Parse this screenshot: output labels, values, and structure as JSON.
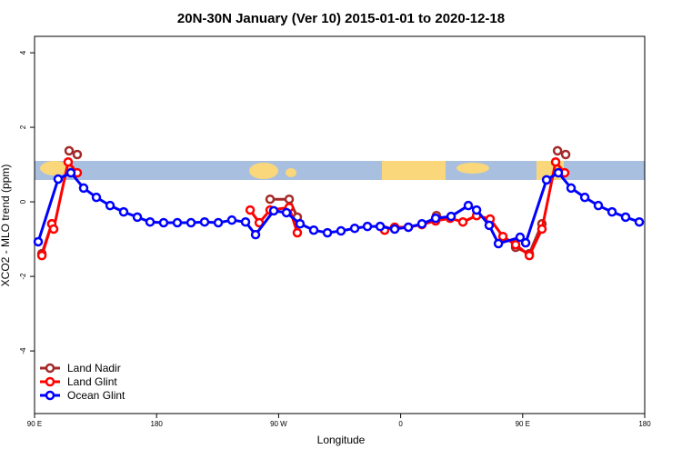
{
  "chart_data": {
    "type": "line",
    "title": "20N-30N January (Ver 10)   2015-01-01 to 2020-12-18",
    "x_label": "Longitude",
    "y_label": "XCO2 - MLO trend (ppm)",
    "xlim": [
      90,
      540
    ],
    "ylim": [
      -5.68,
      4.44
    ],
    "xticks": [
      {
        "value": 90,
        "label": "90 E"
      },
      {
        "value": 180,
        "label": "180"
      },
      {
        "value": 270,
        "label": "90 W"
      },
      {
        "value": 360,
        "label": "0"
      },
      {
        "value": 450,
        "label": "90 E"
      },
      {
        "value": 540,
        "label": "180"
      }
    ],
    "yticks": [
      -4,
      -2,
      0,
      2,
      4
    ],
    "legend": "bottom-left",
    "series": [
      {
        "name": "Land Nadir",
        "color": "#a52a2a",
        "x": [
          95.4,
          102.7,
          null,
          115.5,
          121.5,
          null,
          263.7,
          277.8,
          283.8,
          null,
          386.4,
          null,
          444.8,
          454.9,
          464.2,
          null,
          475.7,
          481.7
        ],
        "values": [
          -1.39,
          -0.59,
          null,
          1.37,
          1.27,
          null,
          0.07,
          0.07,
          -0.41,
          null,
          -0.37,
          null,
          -1.22,
          -1.39,
          -0.59,
          null,
          1.37,
          1.27
        ]
      },
      {
        "name": "Land Glint",
        "color": "#ff0000",
        "x": [
          95.4,
          102.7,
          104.1,
          114.8,
          121.5,
          null,
          249.0,
          255.7,
          263.7,
          277.8,
          283.8,
          null,
          348.2,
          355.6,
          365.7,
          375.7,
          385.8,
          396.5,
          405.9,
          416.0,
          426.0,
          435.4,
          444.8,
          454.9,
          464.2,
          474.3,
          481.0
        ],
        "values": [
          -1.44,
          -0.59,
          -0.73,
          1.07,
          0.78,
          null,
          -0.22,
          -0.56,
          -0.22,
          -0.15,
          -0.83,
          null,
          -0.76,
          -0.68,
          -0.68,
          -0.61,
          -0.51,
          -0.44,
          -0.54,
          -0.37,
          -0.46,
          -0.93,
          -1.15,
          -1.44,
          -0.73,
          1.07,
          0.78
        ]
      },
      {
        "name": "Ocean Glint",
        "color": "#0000ff",
        "x": [
          92.7,
          107.4,
          116.8,
          126.2,
          135.6,
          145.7,
          155.7,
          165.8,
          175.2,
          185.2,
          195.3,
          205.4,
          215.4,
          225.5,
          235.5,
          245.6,
          253.0,
          266.4,
          275.8,
          285.8,
          295.9,
          306.0,
          316.0,
          326.1,
          335.5,
          344.9,
          355.6,
          365.7,
          375.7,
          385.8,
          397.2,
          409.9,
          416.0,
          425.3,
          432.1,
          448.1,
          452.2,
          467.6,
          476.3,
          485.7,
          495.8,
          505.8,
          515.9,
          525.9,
          536.0
        ],
        "values": [
          -1.07,
          0.61,
          0.78,
          0.37,
          0.12,
          -0.1,
          -0.27,
          -0.41,
          -0.54,
          -0.56,
          -0.56,
          -0.56,
          -0.54,
          -0.56,
          -0.49,
          -0.54,
          -0.88,
          -0.24,
          -0.29,
          -0.59,
          -0.76,
          -0.83,
          -0.78,
          -0.71,
          -0.66,
          -0.66,
          -0.73,
          -0.68,
          -0.59,
          -0.44,
          -0.39,
          -0.1,
          -0.22,
          -0.63,
          -1.12,
          -0.95,
          -1.1,
          0.59,
          0.78,
          0.37,
          0.12,
          -0.1,
          -0.27,
          -0.41,
          -0.54
        ]
      }
    ]
  }
}
